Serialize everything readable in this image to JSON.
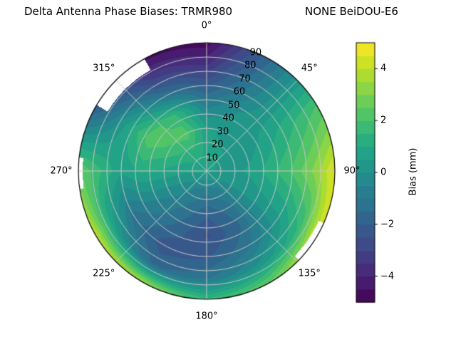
{
  "title": {
    "left": "Delta Antenna Phase Biases: TRMR980",
    "right": "NONE BeiDOU-E6"
  },
  "polar": {
    "azimuth_ticks": [
      {
        "label": "0°",
        "deg": 0
      },
      {
        "label": "45°",
        "deg": 45
      },
      {
        "label": "90°",
        "deg": 90
      },
      {
        "label": "135°",
        "deg": 135
      },
      {
        "label": "180°",
        "deg": 180
      },
      {
        "label": "225°",
        "deg": 225
      },
      {
        "label": "270°",
        "deg": 270
      },
      {
        "label": "315°",
        "deg": 315
      }
    ],
    "radial_ticks": [
      10,
      20,
      30,
      40,
      50,
      60,
      70,
      80,
      90
    ],
    "radial_max": 90,
    "rlabel_angle_deg": 22.5,
    "grid_color": "#c8c8c8"
  },
  "colorbar": {
    "label": "Bias (mm)",
    "ticks": [
      {
        "label": "4",
        "value": 4
      },
      {
        "label": "2",
        "value": 2
      },
      {
        "label": "0",
        "value": 0
      },
      {
        "label": "−2",
        "value": -2
      },
      {
        "label": "−4",
        "value": -4
      }
    ],
    "vmin": -5,
    "vmax": 5
  },
  "chart_data": {
    "type": "heatmap",
    "projection": "polar",
    "title": "Delta Antenna Phase Biases: TRMR980        NONE BeiDOU-E6",
    "colorbar_label": "Bias (mm)",
    "units": "mm",
    "azimuth_zero": "top",
    "azimuth_direction": "clockwise",
    "azimuth_deg": [
      0,
      30,
      60,
      90,
      120,
      150,
      180,
      210,
      240,
      270,
      300,
      330,
      360
    ],
    "radius_deg": [
      0,
      15,
      30,
      45,
      60,
      75,
      90
    ],
    "values": [
      [
        0.6,
        0.6,
        0.6,
        0.6,
        0.6,
        0.6,
        0.6,
        0.6,
        0.6,
        0.6,
        0.6,
        0.6,
        0.6
      ],
      [
        0.9,
        0.6,
        0.4,
        0.3,
        0.0,
        -0.6,
        -0.9,
        -0.6,
        0.0,
        0.6,
        1.1,
        1.3,
        0.9
      ],
      [
        0.6,
        0.3,
        0.2,
        0.6,
        0.1,
        -1.3,
        -1.9,
        -1.1,
        -0.3,
        0.9,
        1.9,
        2.3,
        0.6
      ],
      [
        -0.6,
        0.1,
        0.6,
        1.3,
        0.3,
        -1.6,
        -2.6,
        -1.6,
        -0.6,
        1.1,
        2.4,
        1.6,
        -0.6
      ],
      [
        -2.1,
        -0.6,
        1.1,
        2.1,
        0.6,
        -1.1,
        -2.1,
        -2.3,
        -1.1,
        0.6,
        1.1,
        -1.1,
        -2.1
      ],
      [
        -3.6,
        -1.1,
        1.6,
        3.1,
        1.6,
        0.1,
        -1.1,
        -1.6,
        0.6,
        1.6,
        -0.6,
        -3.1,
        -3.6
      ],
      [
        -4.8,
        -1.6,
        2.1,
        4.6,
        4.6,
        2.6,
        1.6,
        3.6,
        4.1,
        2.6,
        -2.1,
        -4.6,
        -4.8
      ]
    ],
    "mask": [
      {
        "az_min": 301,
        "az_max": 331,
        "r_min": 81
      },
      {
        "az_min": 262,
        "az_max": 276,
        "r_min": 87
      },
      {
        "az_min": 114,
        "az_max": 134,
        "r_min": 86
      }
    ],
    "vmin": -5,
    "vmax": 5,
    "level_step": 0.5,
    "colorbar_tick_values": [
      -4,
      -2,
      0,
      2,
      4
    ],
    "azimuth_tick_labels_deg": [
      0,
      45,
      90,
      135,
      180,
      225,
      270,
      315
    ],
    "radial_tick_labels": [
      10,
      20,
      30,
      40,
      50,
      60,
      70,
      80,
      90
    ],
    "colormap": "viridis",
    "colormap_stops": [
      [
        0.0,
        "#440154"
      ],
      [
        0.1,
        "#482475"
      ],
      [
        0.2,
        "#414487"
      ],
      [
        0.3,
        "#355f8d"
      ],
      [
        0.4,
        "#2a788e"
      ],
      [
        0.5,
        "#21918c"
      ],
      [
        0.6,
        "#22a884"
      ],
      [
        0.7,
        "#44bf70"
      ],
      [
        0.8,
        "#7ad151"
      ],
      [
        0.9,
        "#bddf26"
      ],
      [
        1.0,
        "#fde725"
      ]
    ]
  }
}
